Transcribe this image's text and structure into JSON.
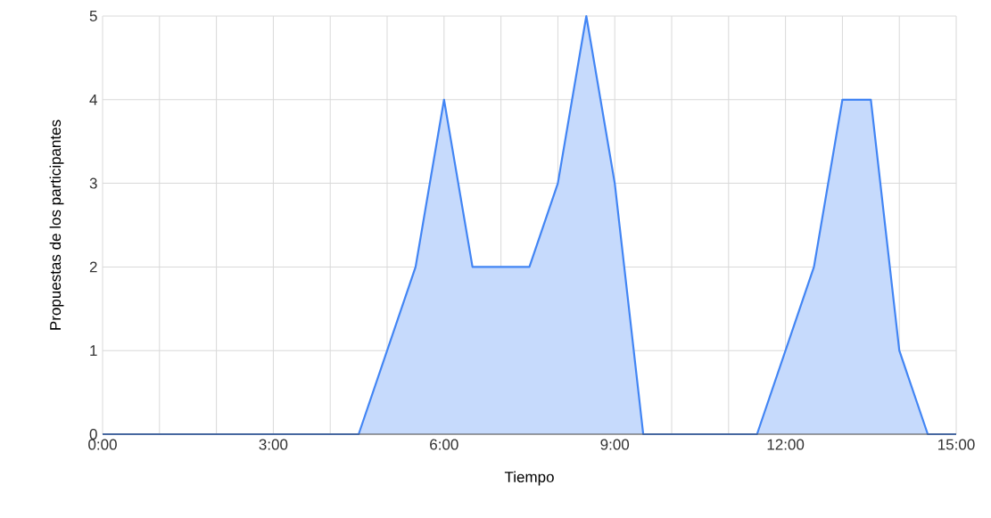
{
  "chart_data": {
    "type": "area",
    "xlabel": "Tiempo",
    "ylabel": "Propuestas de los participantes",
    "x": [
      0,
      0.5,
      1,
      1.5,
      2,
      2.5,
      3,
      3.5,
      4,
      4.5,
      5,
      5.5,
      6,
      6.5,
      7,
      7.5,
      8,
      8.5,
      9,
      9.5,
      10,
      10.5,
      11,
      11.5,
      12,
      12.5,
      13,
      13.5,
      14,
      14.5,
      15
    ],
    "values": [
      0,
      0,
      0,
      0,
      0,
      0,
      0,
      0,
      0,
      0,
      1,
      2,
      4,
      2,
      2,
      2,
      3,
      5,
      3,
      0,
      0,
      0,
      0,
      0,
      1,
      2,
      4,
      4,
      1,
      0,
      0
    ],
    "color": "#4285f4",
    "xlim": [
      0,
      15
    ],
    "xticks": [
      {
        "value": 0,
        "label": "0:00"
      },
      {
        "value": 1,
        "label": null
      },
      {
        "value": 2,
        "label": null
      },
      {
        "value": 3,
        "label": "3:00"
      },
      {
        "value": 4,
        "label": null
      },
      {
        "value": 5,
        "label": null
      },
      {
        "value": 6,
        "label": "6:00"
      },
      {
        "value": 7,
        "label": null
      },
      {
        "value": 8,
        "label": null
      },
      {
        "value": 9,
        "label": "9:00"
      },
      {
        "value": 10,
        "label": null
      },
      {
        "value": 11,
        "label": null
      },
      {
        "value": 12,
        "label": "12:00"
      },
      {
        "value": 13,
        "label": null
      },
      {
        "value": 14,
        "label": null
      },
      {
        "value": 15,
        "label": "15:00"
      }
    ],
    "ylim": [
      0,
      5
    ],
    "yticks": [
      0,
      1,
      2,
      3,
      4,
      5
    ],
    "grid": true
  }
}
